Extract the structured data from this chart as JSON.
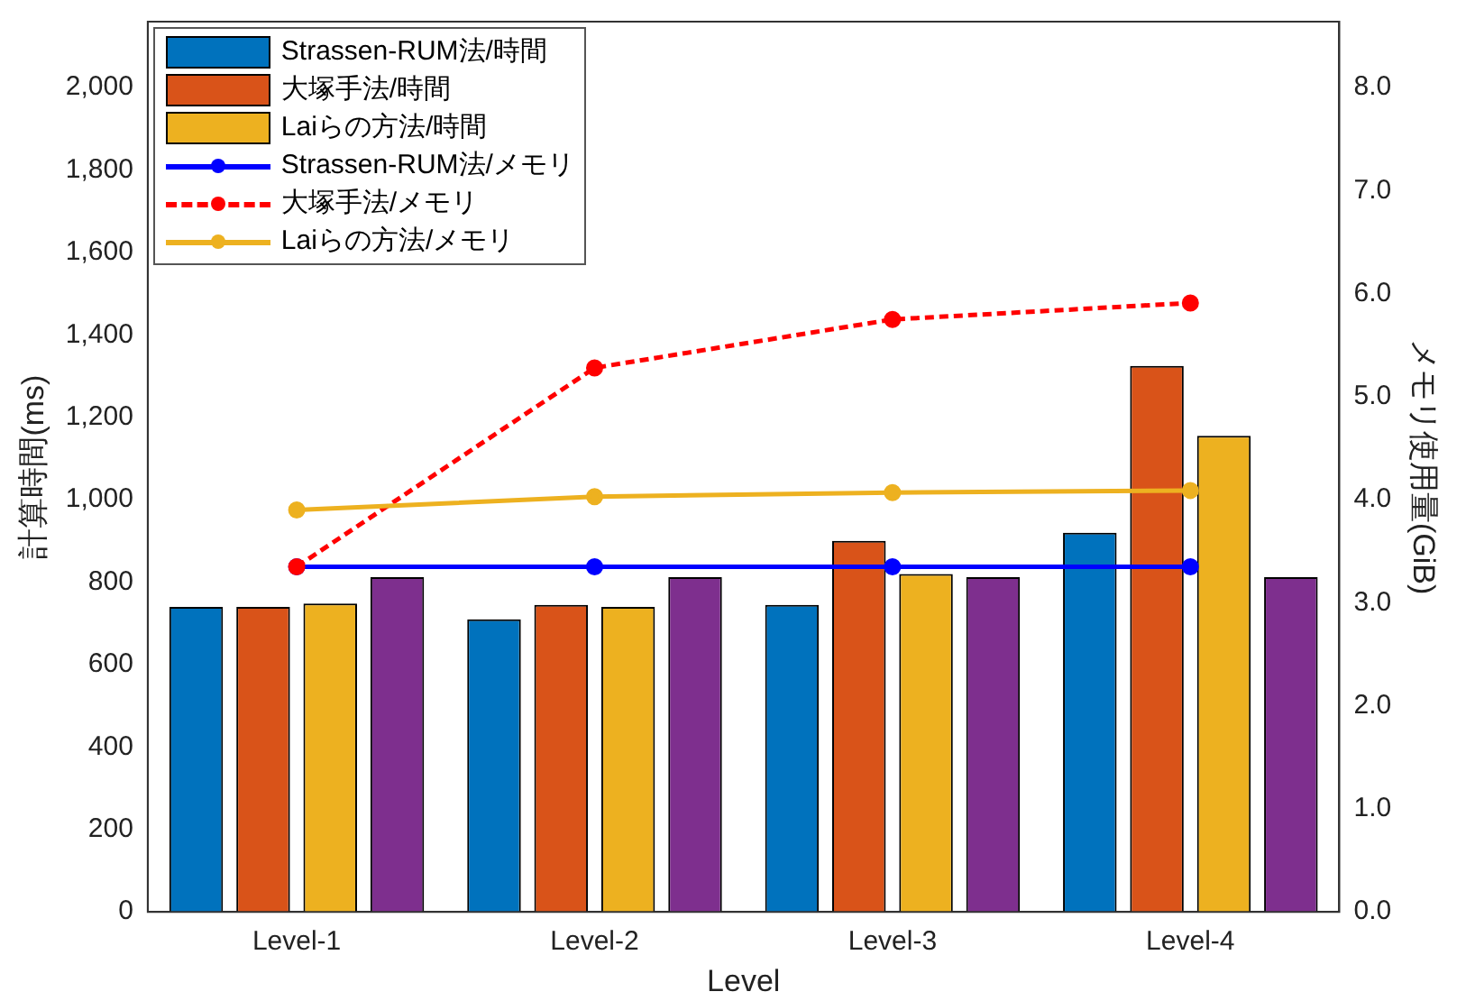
{
  "chart_data": {
    "type": "bar",
    "xlabel": "Level",
    "ylabel": "計算時間(ms)",
    "y2label": "メモリ使用量(GiB)",
    "categories": [
      "Level-1",
      "Level-2",
      "Level-3",
      "Level-4"
    ],
    "series": [
      {
        "name": "Strassen-RUM法/時間",
        "color": "#0072bd",
        "values": [
          740,
          710,
          745,
          920
        ]
      },
      {
        "name": "大塚手法/時間",
        "color": "#d95319",
        "values": [
          740,
          745,
          900,
          1325
        ]
      },
      {
        "name": "Laiらの方法/時間",
        "color": "#edb120",
        "values": [
          748,
          740,
          820,
          1155
        ]
      },
      {
        "color": "#7e2f8e",
        "values": [
          812,
          812,
          812,
          812
        ]
      },
      {
        "name": "Strassen-RUM法/メモリ",
        "type": "line",
        "axis": "y2",
        "color": "#0000ff",
        "line_style": "solid",
        "values": [
          3.35,
          3.35,
          3.35,
          3.35
        ]
      },
      {
        "name": "大塚手法/メモリ",
        "type": "line",
        "axis": "y2",
        "color": "#ff0000",
        "line_style": "dashed",
        "values": [
          3.35,
          5.28,
          5.75,
          5.91
        ]
      },
      {
        "name": "Laiらの方法/メモリ",
        "type": "line",
        "axis": "y2",
        "color": "#edb120",
        "line_style": "solid",
        "values": [
          3.9,
          4.03,
          4.07,
          4.09
        ]
      }
    ],
    "ylim": [
      0,
      2160
    ],
    "yticks": [
      0,
      200,
      400,
      600,
      800,
      {
        "value": 1000,
        "label": "1,000"
      },
      {
        "value": 1200,
        "label": "1,200"
      },
      {
        "value": 1400,
        "label": "1,400"
      },
      {
        "value": 1600,
        "label": "1,600"
      },
      {
        "value": 1800,
        "label": "1,800"
      },
      {
        "value": 2000,
        "label": "2,000"
      }
    ],
    "y2lim": [
      0,
      8.64
    ],
    "y2ticks": [
      {
        "value": 0,
        "label": "0.0"
      },
      {
        "value": 1,
        "label": "1.0"
      },
      {
        "value": 2,
        "label": "2.0"
      },
      {
        "value": 3,
        "label": "3.0"
      },
      {
        "value": 4,
        "label": "4.0"
      },
      {
        "value": 5,
        "label": "5.0"
      },
      {
        "value": 6,
        "label": "6.0"
      },
      {
        "value": 7,
        "label": "7.0"
      },
      {
        "value": 8,
        "label": "8.0"
      }
    ],
    "grid": false,
    "legend": "top left",
    "marker": "circle"
  }
}
